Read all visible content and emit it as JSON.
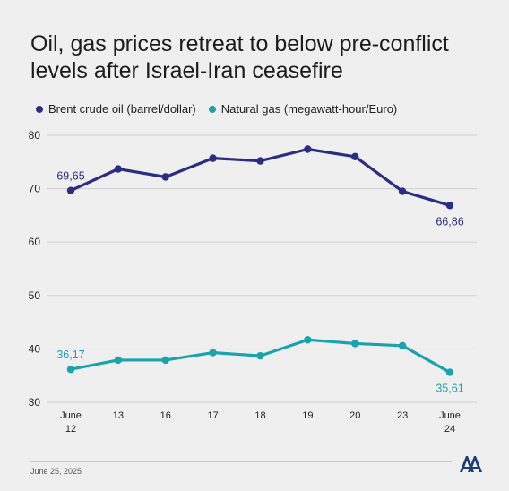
{
  "title": "Oil, gas prices retreat to below pre-conflict levels after Israel-Iran ceasefire",
  "footer": {
    "date": "June 25, 2025"
  },
  "colors": {
    "oil": "#2b2d82",
    "gas": "#1aa3ad",
    "grid": "#cfcfcf",
    "text": "#222222"
  },
  "chart_data": {
    "type": "line",
    "categories": [
      "June\n12",
      "13",
      "16",
      "17",
      "18",
      "19",
      "20",
      "23",
      "June\n24"
    ],
    "series": [
      {
        "name": "Brent crude oil (barrel/dollar)",
        "values": [
          69.65,
          73.7,
          72.2,
          75.7,
          75.2,
          77.4,
          76.0,
          69.5,
          66.86
        ]
      },
      {
        "name": "Natural gas (megawatt-hour/Euro)",
        "values": [
          36.17,
          37.9,
          37.9,
          39.3,
          38.7,
          41.7,
          41.0,
          40.6,
          35.61
        ]
      }
    ],
    "data_labels": [
      {
        "series": 0,
        "index": 0,
        "text": "69,65"
      },
      {
        "series": 0,
        "index": 8,
        "text": "66,86"
      },
      {
        "series": 1,
        "index": 0,
        "text": "36,17"
      },
      {
        "series": 1,
        "index": 8,
        "text": "35,61"
      }
    ],
    "yticks": [
      30,
      40,
      50,
      60,
      70,
      80
    ],
    "ylim": [
      30,
      80
    ],
    "grid": true,
    "legend": "top-left"
  }
}
